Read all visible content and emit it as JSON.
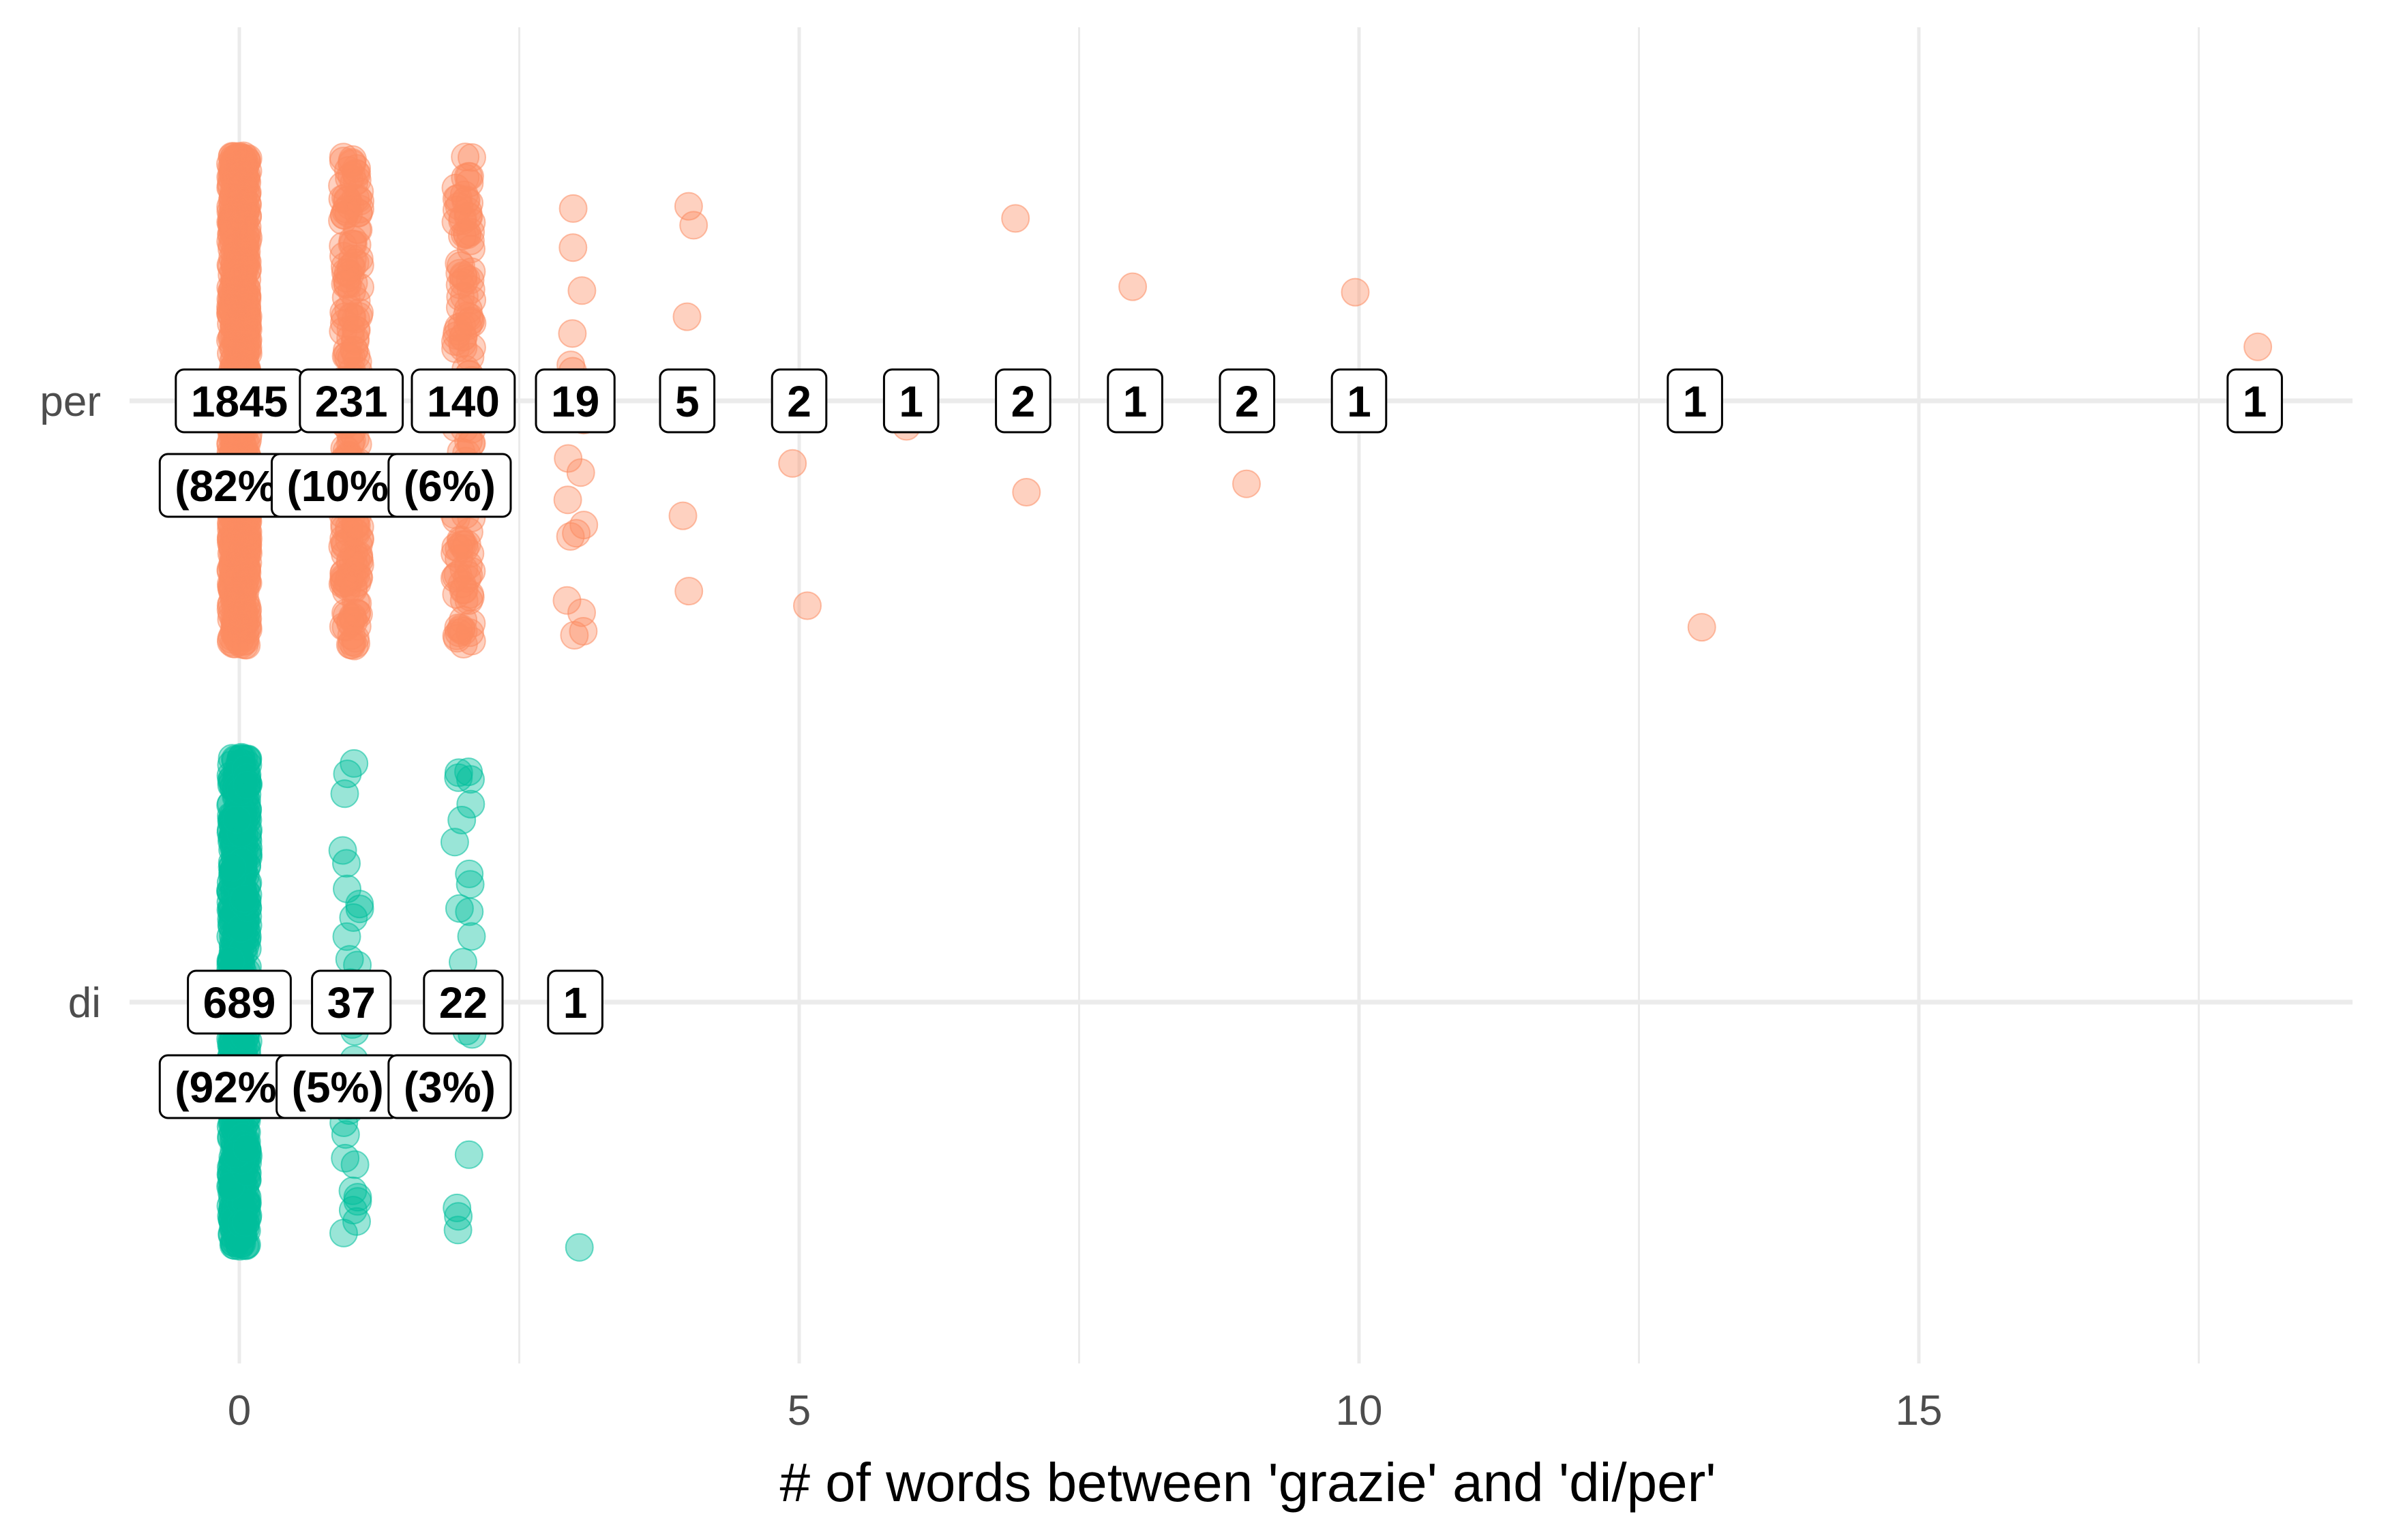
{
  "chart_data": {
    "type": "scatter",
    "subtype": "jitter strip plot with count labels",
    "xlabel": "# of words between 'grazie' and 'di/per'",
    "ylabel": "",
    "xlim": [
      -0.6,
      18.9
    ],
    "x_ticks": [
      0,
      5,
      10,
      15
    ],
    "x_tick_labels": [
      "0",
      "5",
      "10",
      "15"
    ],
    "categories": [
      "per",
      "di"
    ],
    "grid": true,
    "legend": "none",
    "colors": {
      "per": "#fc8d62",
      "di": "#00bf9c"
    },
    "series": [
      {
        "category": "per",
        "counts": [
          {
            "x": 0,
            "count": "1845",
            "pct": "(82%"
          },
          {
            "x": 1,
            "count": "231",
            "pct": "(10%"
          },
          {
            "x": 2,
            "count": "140",
            "pct": "(6%)"
          },
          {
            "x": 3,
            "count": "19"
          },
          {
            "x": 4,
            "count": "5"
          },
          {
            "x": 5,
            "count": "2"
          },
          {
            "x": 6,
            "count": "1"
          },
          {
            "x": 7,
            "count": "2"
          },
          {
            "x": 8,
            "count": "1"
          },
          {
            "x": 9,
            "count": "2"
          },
          {
            "x": 10,
            "count": "1"
          },
          {
            "x": 13,
            "count": "1"
          },
          {
            "x": 18,
            "count": "1"
          }
        ]
      },
      {
        "category": "di",
        "counts": [
          {
            "x": 0,
            "count": "689",
            "pct": "(92%"
          },
          {
            "x": 1,
            "count": "37",
            "pct": "(5%)"
          },
          {
            "x": 2,
            "count": "22",
            "pct": "(3%)"
          },
          {
            "x": 3,
            "count": "1"
          }
        ]
      }
    ]
  }
}
